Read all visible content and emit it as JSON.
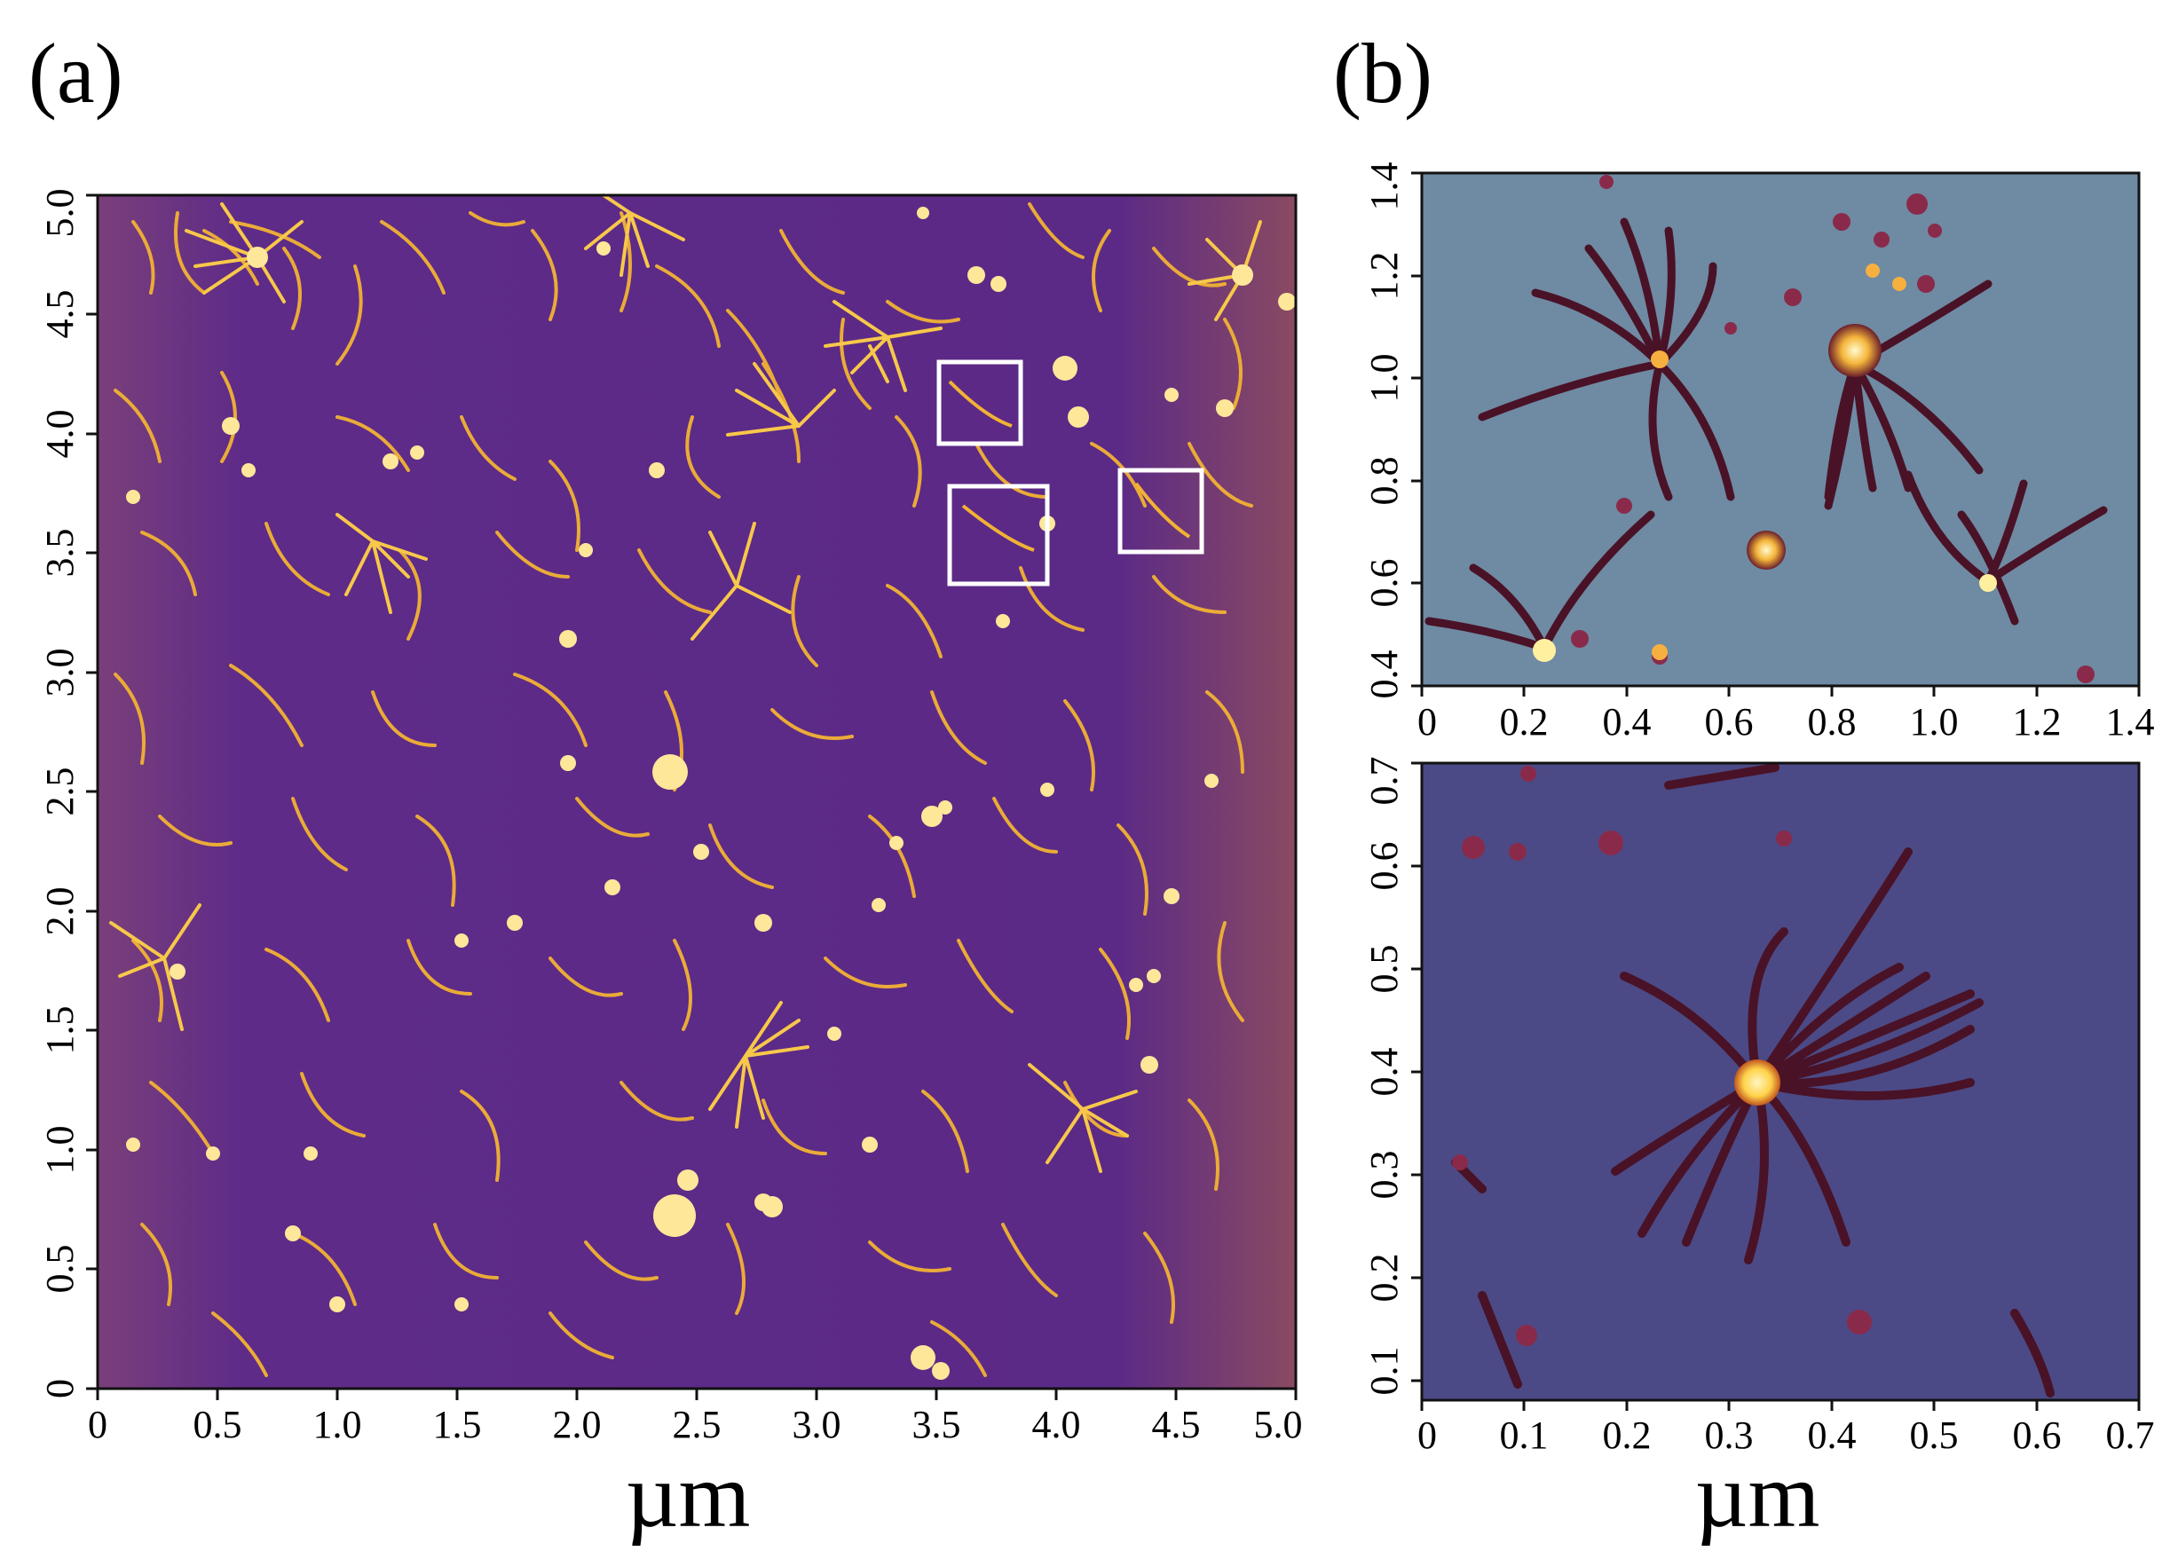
{
  "figure": {
    "panel_a": {
      "label": "(a)",
      "x_ticks": [
        "0",
        "0.5",
        "1.0",
        "1.5",
        "2.0",
        "2.5",
        "3.0",
        "3.5",
        "4.0",
        "4.5",
        "5.0"
      ],
      "y_ticks": [
        "0",
        "0.5",
        "1.0",
        "1.5",
        "2.0",
        "2.5",
        "3.0",
        "3.5",
        "4.0",
        "4.5",
        "5.0"
      ],
      "unit": "µm",
      "highlight_boxes": 3
    },
    "panel_b": {
      "label": "(b)",
      "top": {
        "x_ticks": [
          "0",
          "0.2",
          "0.4",
          "0.6",
          "0.8",
          "1.0",
          "1.2",
          "1.4"
        ],
        "y_ticks": [
          "0.4",
          "0.6",
          "0.8",
          "1.0",
          "1.2",
          "1.4"
        ]
      },
      "bottom": {
        "x_ticks": [
          "0",
          "0.1",
          "0.2",
          "0.3",
          "0.4",
          "0.5",
          "0.6",
          "0.7"
        ],
        "y_ticks": [
          "0.1",
          "0.2",
          "0.3",
          "0.4",
          "0.5",
          "0.6",
          "0.7"
        ]
      },
      "unit": "µm"
    },
    "colors": {
      "panel_a_background": "#5b2a86",
      "panel_a_fibrils": "#f2b234",
      "panel_b_top_background": "#6f8aa3",
      "panel_b_bottom_background": "#4b4a86",
      "panel_b_fibrils": "#4a1226",
      "bright_core": "#ffe27a"
    }
  }
}
